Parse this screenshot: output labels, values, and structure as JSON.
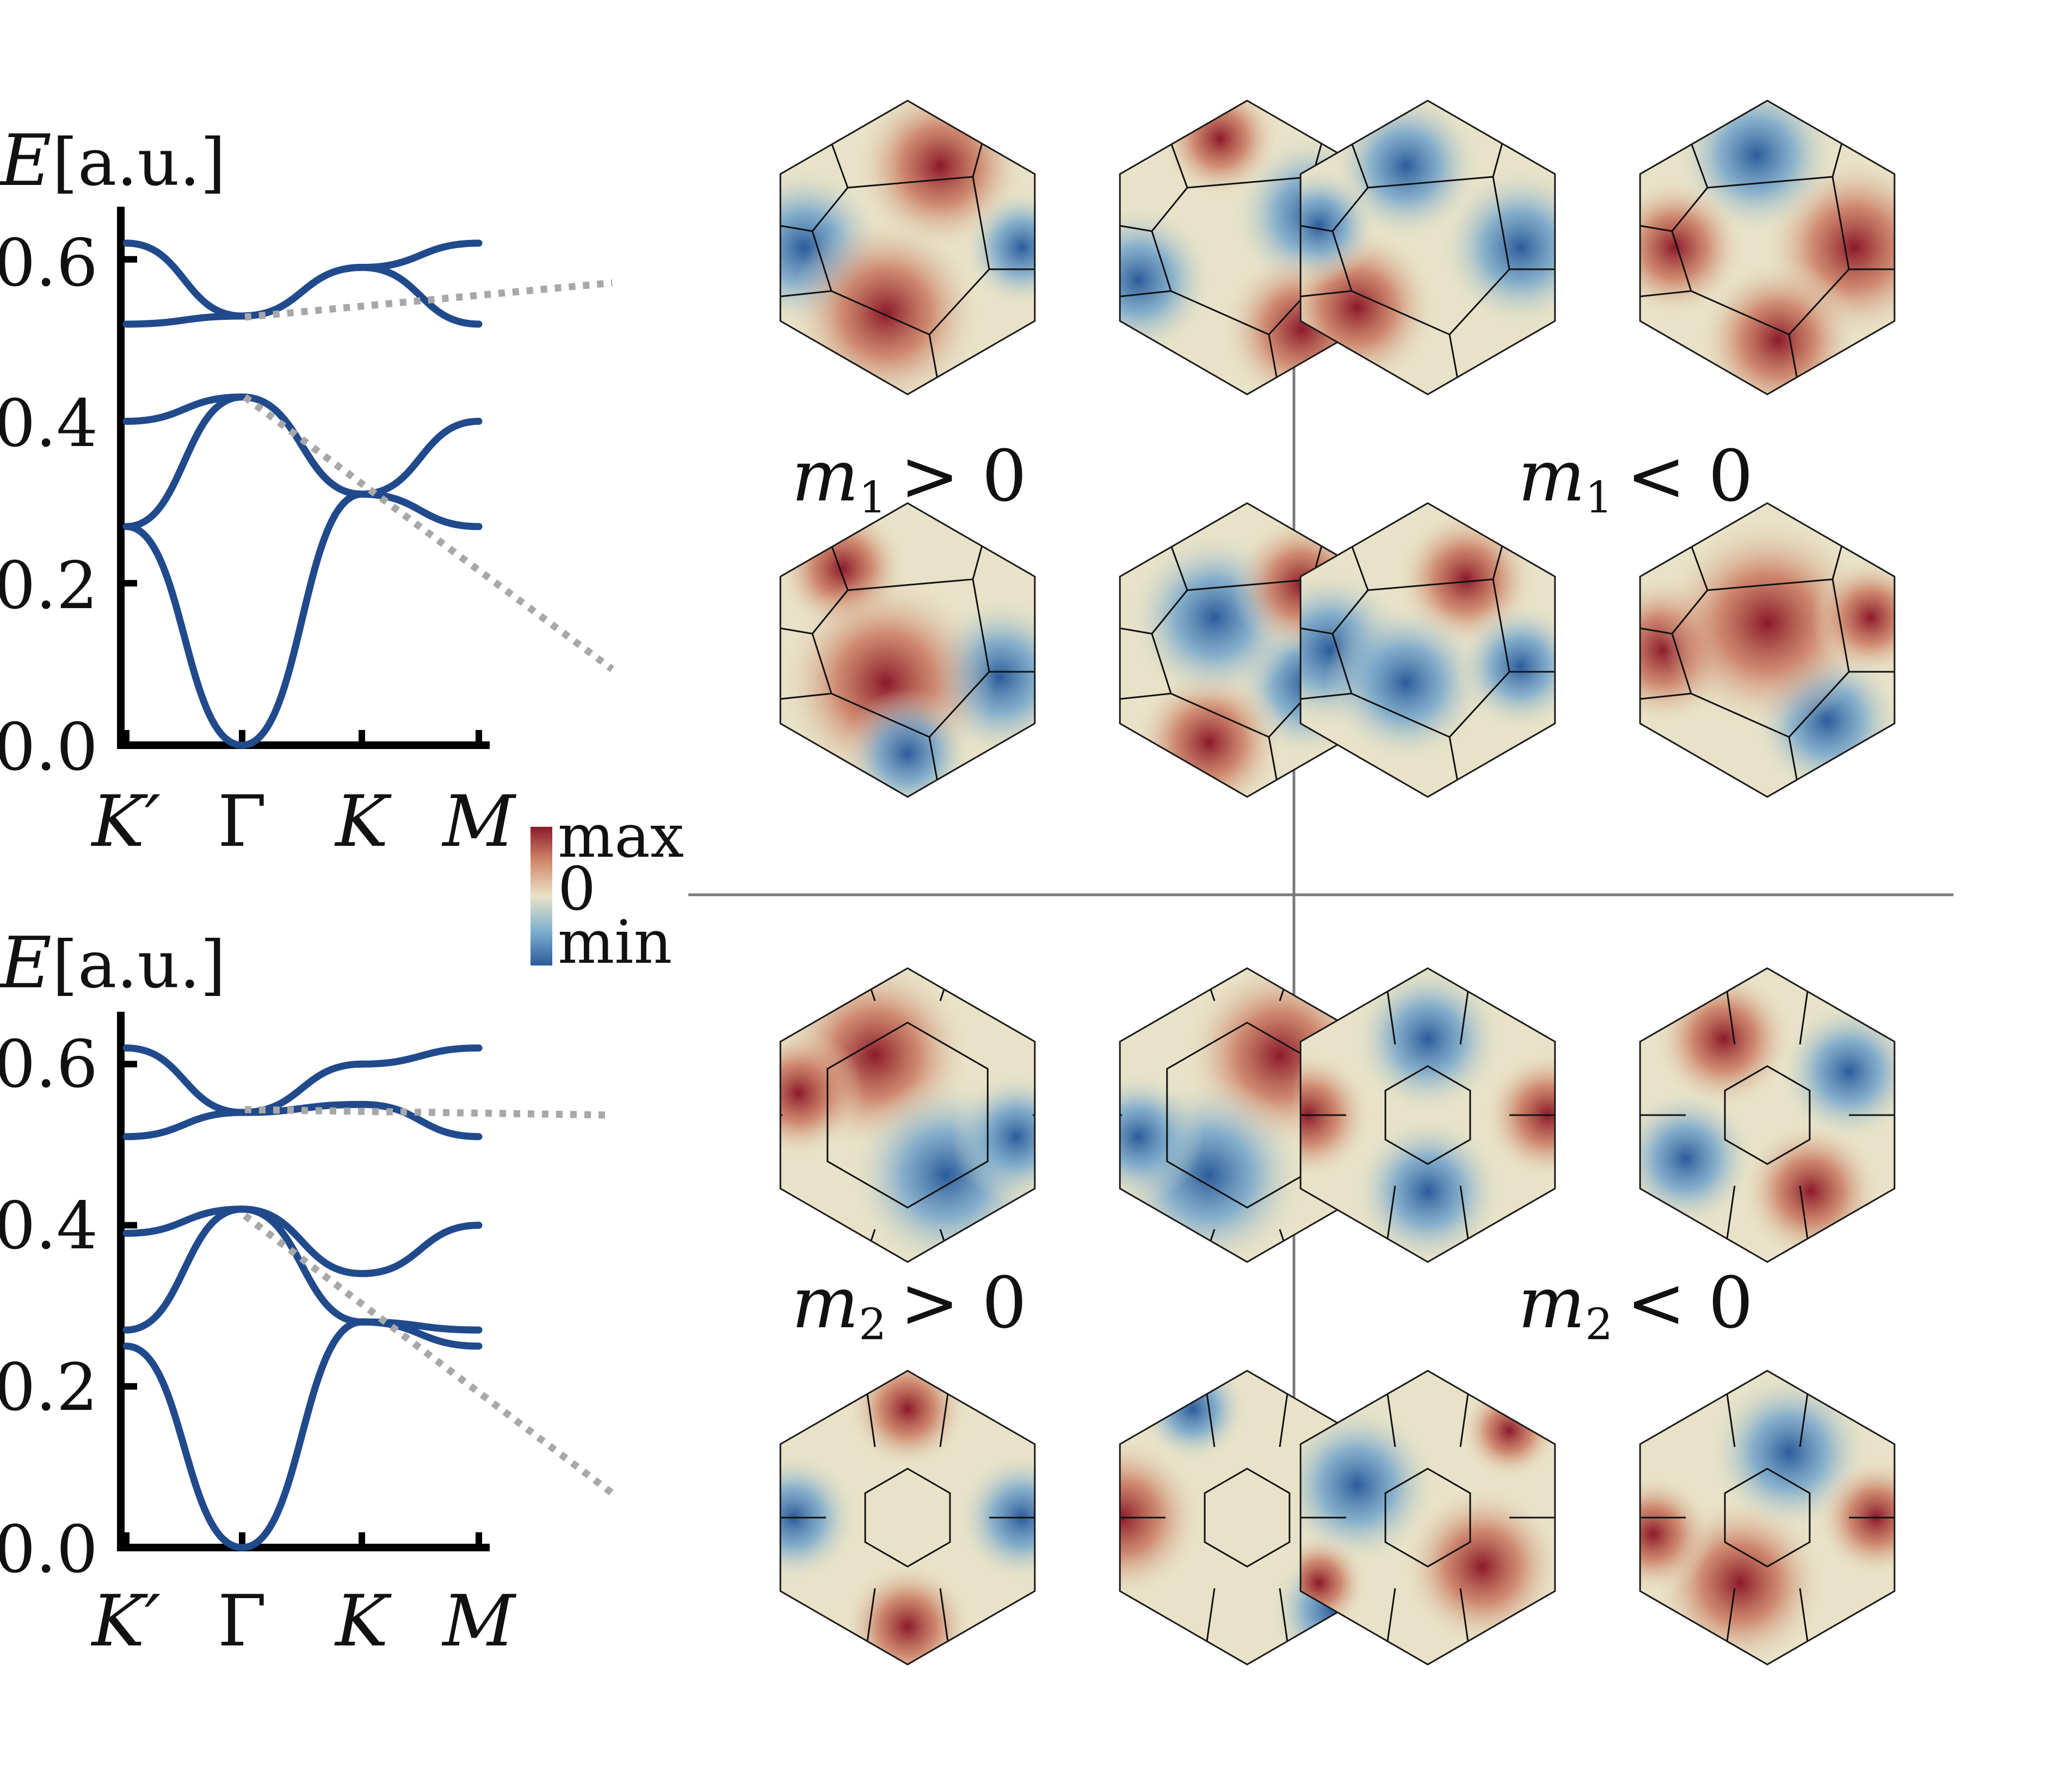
{
  "colors": {
    "band": "#204a8c",
    "max": "#8b1a2b",
    "mid": "#e8e3c8",
    "min": "#2b5c9a",
    "connector": "#a8a8a8",
    "divider": "#7a7a7a"
  },
  "band_plots": [
    {
      "ylabel_E": "E",
      "ylabel_unit": "[a.u.]",
      "yticks": [
        "0.0",
        "0.2",
        "0.4",
        "0.6"
      ],
      "xticks": [
        "K′",
        "Γ",
        "K",
        "M"
      ]
    },
    {
      "ylabel_E": "E",
      "ylabel_unit": "[a.u.]",
      "yticks": [
        "0.0",
        "0.2",
        "0.4",
        "0.6"
      ],
      "xticks": [
        "K′",
        "Γ",
        "K",
        "M"
      ]
    }
  ],
  "colorbar": {
    "max": "max",
    "zero": "0",
    "min": "min"
  },
  "panel_labels": [
    {
      "var": "m",
      "sub": "1",
      "rel": "> 0"
    },
    {
      "var": "m",
      "sub": "1",
      "rel": "< 0"
    },
    {
      "var": "m",
      "sub": "2",
      "rel": "> 0"
    },
    {
      "var": "m",
      "sub": "2",
      "rel": "< 0"
    }
  ],
  "chart_data": [
    {
      "type": "line",
      "title": "",
      "xlabel": "",
      "ylabel": "E [a.u.]",
      "x_ticks": [
        "K′",
        "Γ",
        "K",
        "M"
      ],
      "x": [
        0,
        1,
        2,
        3
      ],
      "ylim": [
        0,
        0.65
      ],
      "series": [
        {
          "values": [
            0.27,
            0.0,
            0.31,
            0.4
          ]
        },
        {
          "values": [
            0.27,
            0.43,
            0.31,
            0.27
          ]
        },
        {
          "values": [
            0.4,
            0.43,
            0.31,
            0.27
          ]
        },
        {
          "values": [
            0.52,
            0.53,
            0.59,
            0.52
          ]
        },
        {
          "values": [
            0.62,
            0.53,
            0.59,
            0.62
          ]
        }
      ]
    },
    {
      "type": "line",
      "title": "",
      "xlabel": "",
      "ylabel": "E [a.u.]",
      "x_ticks": [
        "K′",
        "Γ",
        "K",
        "M"
      ],
      "x": [
        0,
        1,
        2,
        3
      ],
      "ylim": [
        0,
        0.65
      ],
      "series": [
        {
          "values": [
            0.25,
            0.0,
            0.28,
            0.25
          ]
        },
        {
          "values": [
            0.27,
            0.42,
            0.28,
            0.27
          ]
        },
        {
          "values": [
            0.39,
            0.42,
            0.34,
            0.4
          ]
        },
        {
          "values": [
            0.51,
            0.54,
            0.55,
            0.51
          ]
        },
        {
          "values": [
            0.62,
            0.54,
            0.6,
            0.62
          ]
        }
      ]
    }
  ]
}
